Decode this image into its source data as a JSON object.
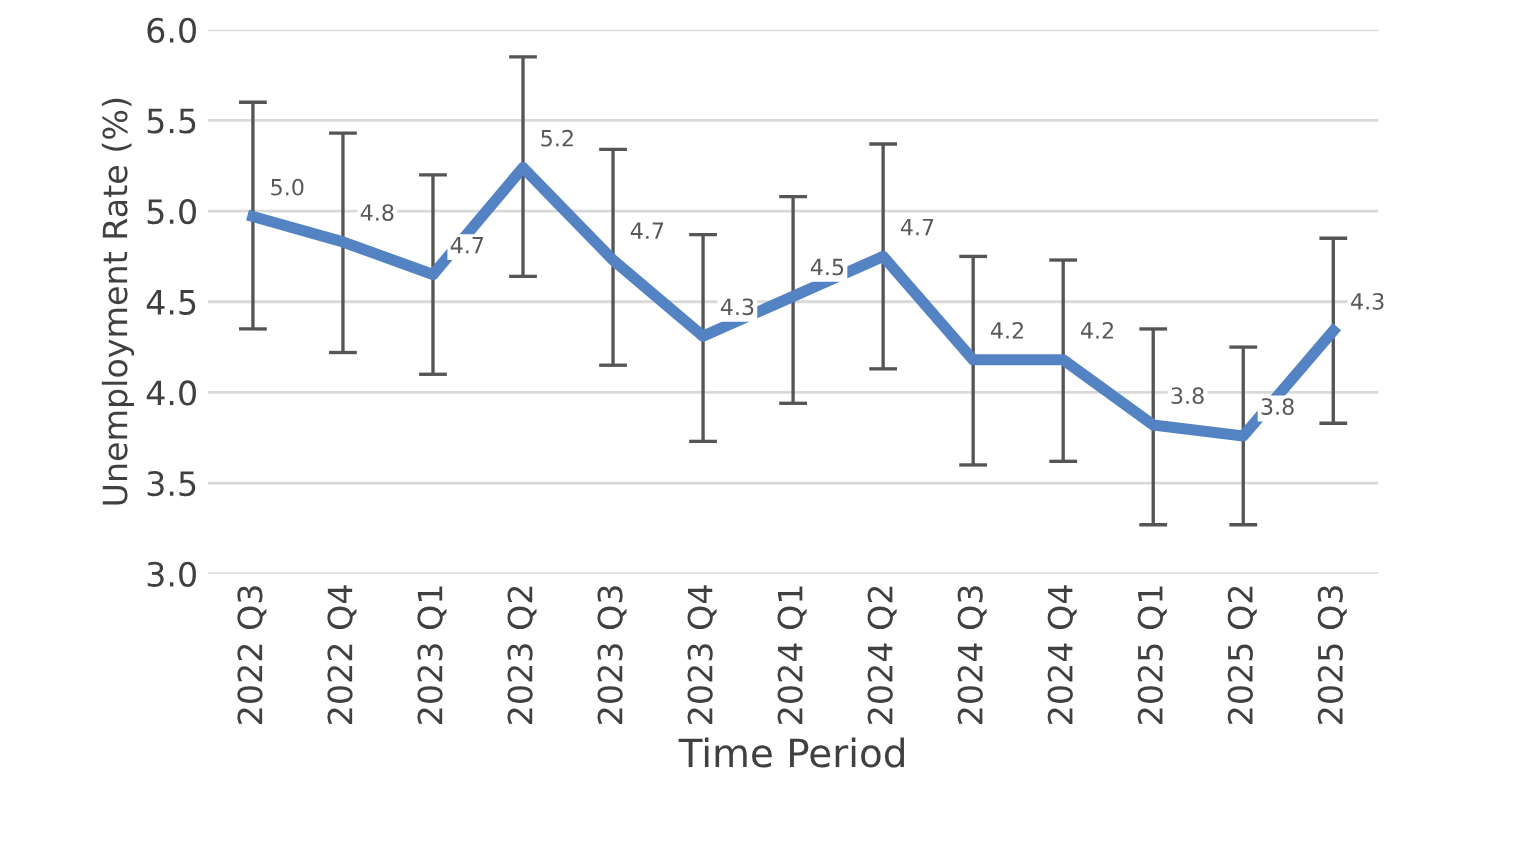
{
  "chart_data": {
    "type": "line",
    "xlabel": "Time Period",
    "ylabel": "Unemployment Rate (%)",
    "categories": [
      "2022 Q3",
      "2022 Q4",
      "2023 Q1",
      "2023 Q2",
      "2023 Q3",
      "2023 Q4",
      "2024 Q1",
      "2024 Q2",
      "2024 Q3",
      "2024 Q4",
      "2025 Q1",
      "2025 Q2",
      "2025 Q3"
    ],
    "values": [
      4.97,
      4.83,
      4.65,
      5.24,
      4.73,
      4.31,
      4.53,
      4.75,
      4.18,
      4.18,
      3.82,
      3.76,
      4.34
    ],
    "value_labels": [
      "5.0",
      "4.8",
      "4.7",
      "5.2",
      "4.7",
      "4.3",
      "4.5",
      "4.7",
      "4.2",
      "4.2",
      "3.8",
      "3.8",
      "4.3"
    ],
    "errors": [
      [
        4.35,
        5.6
      ],
      [
        4.22,
        5.43
      ],
      [
        4.1,
        5.2
      ],
      [
        4.64,
        5.85
      ],
      [
        4.15,
        5.34
      ],
      [
        3.73,
        4.87
      ],
      [
        3.94,
        5.08
      ],
      [
        4.13,
        5.37
      ],
      [
        3.6,
        4.75
      ],
      [
        3.62,
        4.73
      ],
      [
        3.27,
        4.35
      ],
      [
        3.27,
        4.25
      ],
      [
        3.83,
        4.85
      ]
    ],
    "color": "#5383c3",
    "ylim": [
      3.0,
      6.0
    ],
    "yticks": [
      {
        "value": 3.0,
        "label": "3.0"
      },
      {
        "value": 3.5,
        "label": "3.5"
      },
      {
        "value": 4.0,
        "label": "4.0"
      },
      {
        "value": 4.5,
        "label": "4.5"
      },
      {
        "value": 5.0,
        "label": "5.0"
      },
      {
        "value": 5.5,
        "label": "5.5"
      },
      {
        "value": 6.0,
        "label": "6.0"
      }
    ],
    "grid": "y",
    "marker": "none",
    "line_style": "solid"
  }
}
